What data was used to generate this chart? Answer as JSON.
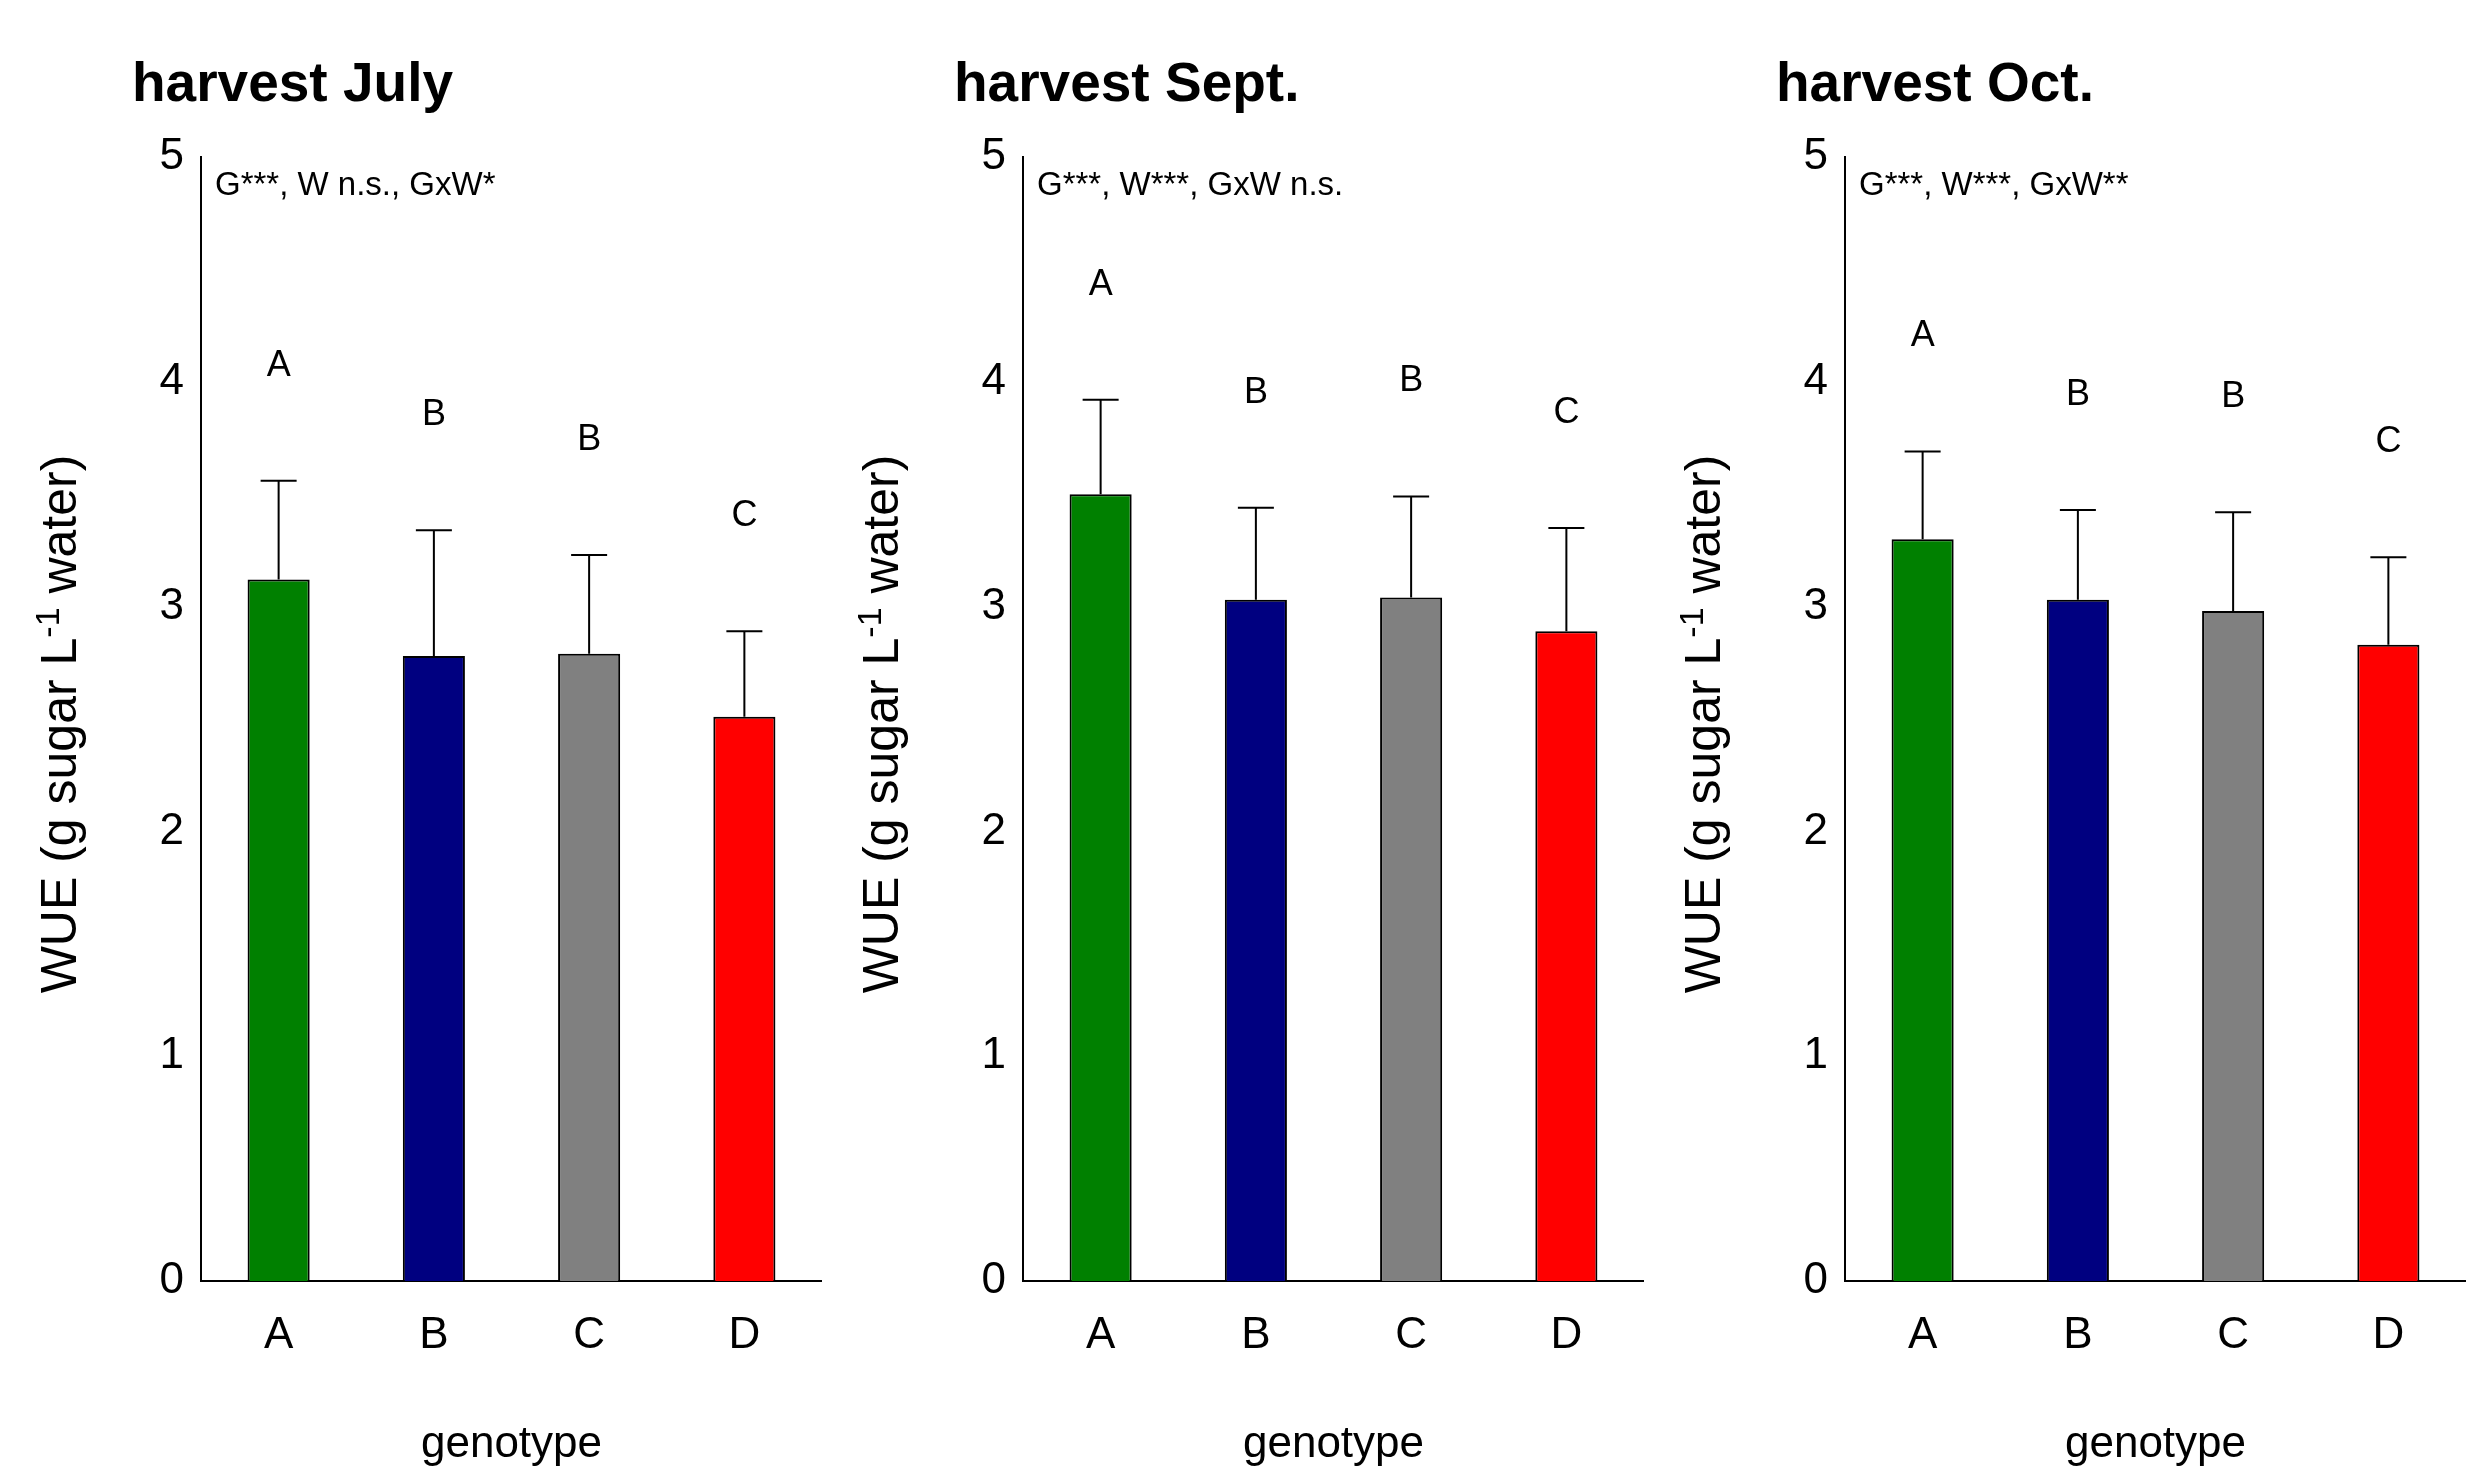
{
  "chart_data": [
    {
      "type": "bar",
      "title": "harvest July",
      "xlabel": "genotype",
      "ylabel": "WUE (g sugar L$^{-1}$ water)",
      "categories": [
        "A",
        "B",
        "C",
        "D"
      ],
      "colors": [
        "#008000",
        "#000080",
        "#808080",
        "#ff0000"
      ],
      "values": [
        3.12,
        2.78,
        2.79,
        2.51
      ],
      "errors": [
        [
          3.12,
          3.56
        ],
        [
          2.78,
          3.34
        ],
        [
          2.79,
          3.23
        ],
        [
          2.51,
          2.89
        ]
      ],
      "ylim": [
        0,
        5
      ],
      "yticks": [
        0,
        1,
        2,
        3,
        4,
        5
      ],
      "annotations": [
        "G***, W n.s., GxW*",
        "A",
        "B",
        "B",
        "C"
      ]
    },
    {
      "type": "bar",
      "title": "harvest Sept.",
      "xlabel": "genotype",
      "ylabel": "WUE (g sugar L$^{-1}$ water)",
      "categories": [
        "A",
        "B",
        "C",
        "D"
      ],
      "colors": [
        "#008000",
        "#000080",
        "#808080",
        "#ff0000"
      ],
      "values": [
        3.5,
        3.03,
        3.04,
        2.89
      ],
      "errors": [
        [
          3.5,
          3.92
        ],
        [
          3.03,
          3.44
        ],
        [
          3.04,
          3.49
        ],
        [
          2.89,
          3.35
        ]
      ],
      "ylim": [
        0,
        5
      ],
      "yticks": [
        0,
        1,
        2,
        3,
        4,
        5
      ],
      "annotations": [
        "G***, W***, GxW n.s.",
        "A",
        "B",
        "B",
        "C"
      ]
    },
    {
      "type": "bar",
      "title": "harvest Oct.",
      "xlabel": "genotype",
      "ylabel": "WUE (g sugar L$^{-1}$ water)",
      "categories": [
        "A",
        "B",
        "C",
        "D"
      ],
      "colors": [
        "#008000",
        "#000080",
        "#808080",
        "#ff0000"
      ],
      "values": [
        3.3,
        3.03,
        2.98,
        2.83
      ],
      "errors": [
        [
          3.3,
          3.69
        ],
        [
          3.03,
          3.43
        ],
        [
          2.98,
          3.42
        ],
        [
          2.83,
          3.22
        ]
      ],
      "ylim": [
        0,
        5
      ],
      "yticks": [
        0,
        1,
        2,
        3,
        4,
        5
      ],
      "annotations": [
        "G***, W***, GxW**",
        "A",
        "B",
        "B",
        "C"
      ]
    }
  ]
}
